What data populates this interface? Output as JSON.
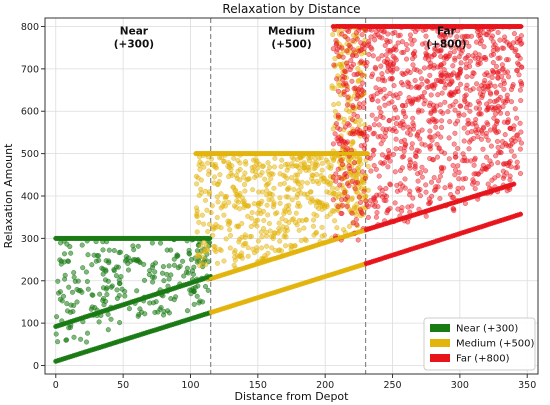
{
  "chart_data": {
    "type": "scatter",
    "title": "Relaxation by Distance",
    "xlabel": "Distance from Depot",
    "ylabel": "Relaxation Amount",
    "xlim": [
      -8,
      358
    ],
    "ylim": [
      -20,
      820
    ],
    "x_ticks": [
      0,
      50,
      100,
      150,
      200,
      250,
      300,
      350
    ],
    "y_ticks": [
      0,
      100,
      200,
      300,
      400,
      500,
      600,
      700,
      800
    ],
    "grid": true,
    "legend_position": "bottom-right",
    "boundaries": [
      115,
      230
    ],
    "zone_labels": [
      {
        "text": "Near\n(+300)",
        "x": 58,
        "y": 790
      },
      {
        "text": "Medium\n(+500)",
        "x": 175,
        "y": 790
      },
      {
        "text": "Far\n(+800)",
        "x": 290,
        "y": 790
      }
    ],
    "series": [
      {
        "name": "Near (+300)",
        "color": "#1a7a14",
        "x_range": [
          0,
          115
        ],
        "relaxation": 300,
        "band_lines": [
          {
            "x": [
              0,
              115
            ],
            "y": [
              10,
              125
            ]
          },
          {
            "x": [
              0,
              115
            ],
            "y": [
              92,
              210
            ]
          }
        ]
      },
      {
        "name": "Medium (+500)",
        "color": "#e3b40c",
        "x_range": [
          104,
          232
        ],
        "relaxation": 500,
        "band_lines": [
          {
            "x": [
              115,
              230
            ],
            "y": [
              125,
              240
            ]
          },
          {
            "x": [
              115,
              230
            ],
            "y": [
              205,
              320
            ]
          }
        ]
      },
      {
        "name": "Far (+800)",
        "color": "#e8141c",
        "x_range": [
          206,
          346
        ],
        "relaxation": 800,
        "band_lines": [
          {
            "x": [
              230,
              345
            ],
            "y": [
              240,
              357
            ]
          },
          {
            "x": [
              230,
              340
            ],
            "y": [
              320,
              428
            ]
          }
        ]
      }
    ]
  }
}
